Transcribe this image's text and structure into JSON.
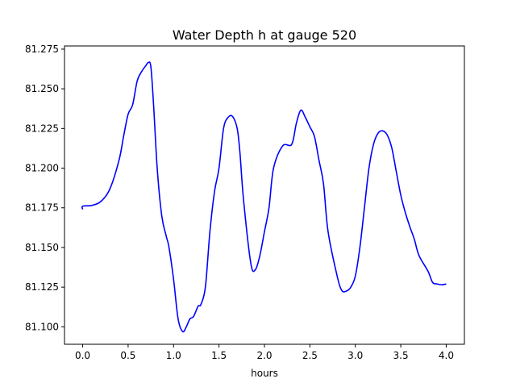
{
  "chart_data": {
    "type": "line",
    "title": "Water Depth h at gauge 520",
    "xlabel": "hours",
    "ylabel": "",
    "xlim": [
      -0.2,
      4.2
    ],
    "ylim": [
      81.089,
      81.277
    ],
    "grid": false,
    "legend": "none",
    "xticks": [
      "0.0",
      "0.5",
      "1.0",
      "1.5",
      "2.0",
      "2.5",
      "3.0",
      "3.5",
      "4.0"
    ],
    "yticks": [
      "81.100",
      "81.125",
      "81.150",
      "81.175",
      "81.200",
      "81.225",
      "81.250",
      "81.275"
    ],
    "series": [
      {
        "color": "#0000ff",
        "x": [
          0.0,
          0.0,
          0.1,
          0.2,
          0.3,
          0.4,
          0.45,
          0.5,
          0.55,
          0.6,
          0.65,
          0.7,
          0.72,
          0.75,
          0.78,
          0.82,
          0.87,
          0.92,
          0.95,
          1.0,
          1.05,
          1.1,
          1.14,
          1.18,
          1.22,
          1.27,
          1.3,
          1.35,
          1.4,
          1.45,
          1.5,
          1.55,
          1.6,
          1.65,
          1.7,
          1.73,
          1.77,
          1.85,
          1.9,
          1.95,
          2.0,
          2.05,
          2.1,
          2.2,
          2.3,
          2.35,
          2.4,
          2.45,
          2.5,
          2.55,
          2.6,
          2.65,
          2.7,
          2.8,
          2.85,
          2.9,
          2.95,
          3.0,
          3.05,
          3.1,
          3.15,
          3.2,
          3.25,
          3.3,
          3.35,
          3.4,
          3.45,
          3.5,
          3.55,
          3.6,
          3.65,
          3.7,
          3.8,
          3.85,
          3.9,
          3.95,
          4.0
        ],
        "values": [
          81.174,
          81.176,
          81.1765,
          81.179,
          81.187,
          81.205,
          81.22,
          81.234,
          81.24,
          81.255,
          81.261,
          81.265,
          81.2665,
          81.264,
          81.24,
          81.2,
          81.17,
          81.157,
          81.15,
          81.13,
          81.105,
          81.097,
          81.1,
          81.105,
          81.1065,
          81.113,
          81.114,
          81.125,
          81.16,
          81.185,
          81.2,
          81.225,
          81.232,
          81.2325,
          81.225,
          81.21,
          81.18,
          81.14,
          81.136,
          81.145,
          81.16,
          81.175,
          81.2,
          81.214,
          81.215,
          81.228,
          81.2365,
          81.232,
          81.226,
          81.22,
          81.205,
          81.19,
          81.16,
          81.132,
          81.123,
          81.1225,
          81.125,
          81.132,
          81.15,
          81.175,
          81.2,
          81.215,
          81.222,
          81.2235,
          81.221,
          81.213,
          81.198,
          81.183,
          81.172,
          81.163,
          81.155,
          81.145,
          81.135,
          81.128,
          81.127,
          81.1265,
          81.127
        ]
      }
    ]
  }
}
